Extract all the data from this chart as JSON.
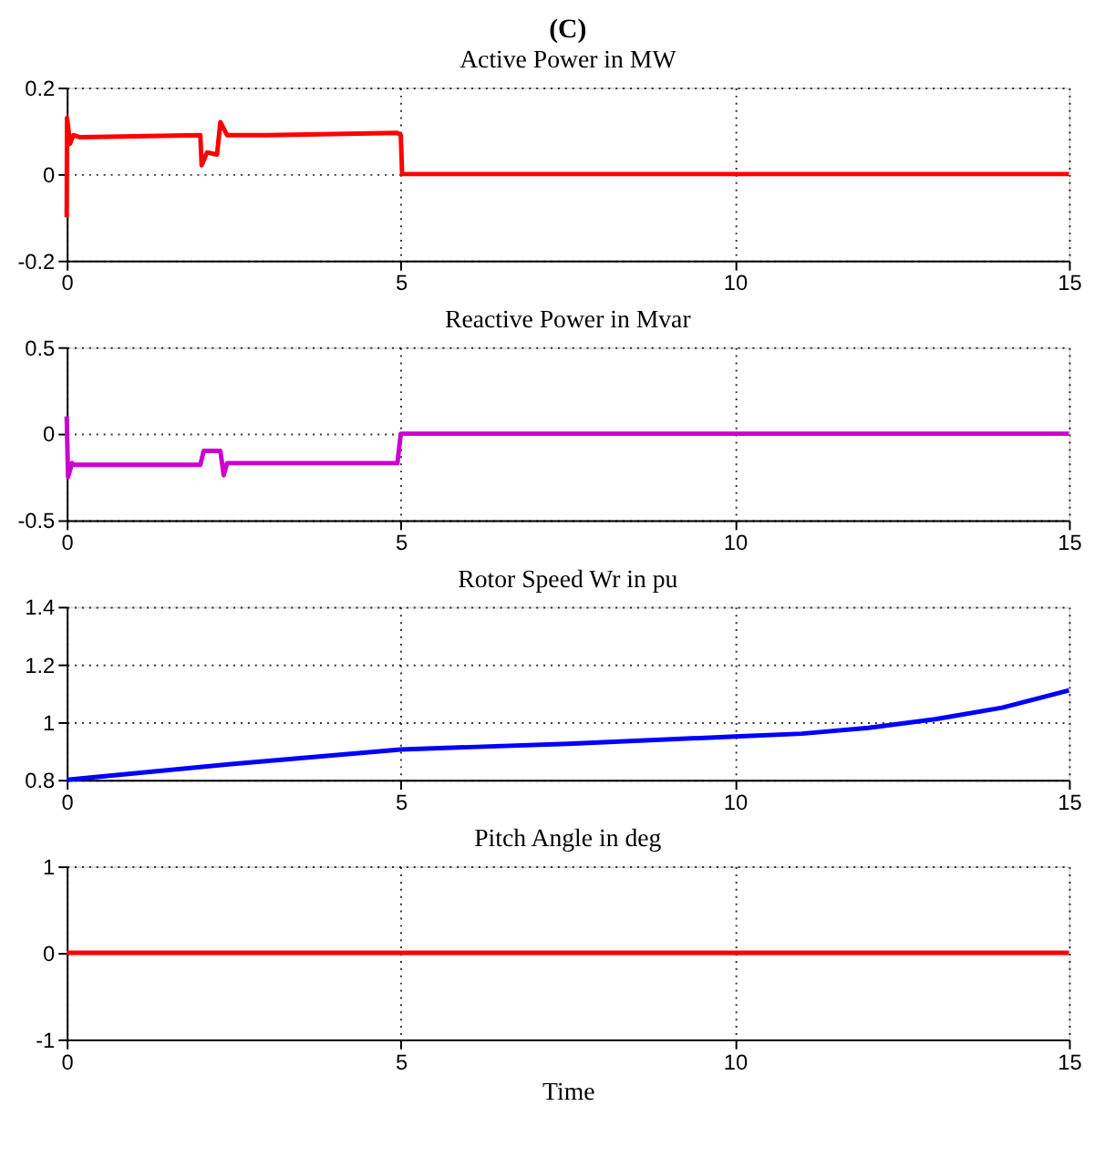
{
  "chart_data": [
    {
      "type": "line",
      "title": "(C)",
      "subtitle": "Active Power in MW",
      "xlim": [
        0,
        15
      ],
      "xticks": [
        0,
        5,
        10,
        15
      ],
      "ylim": [
        -0.2,
        0.2
      ],
      "yticks": [
        -0.2,
        0,
        0.2
      ],
      "grid": true,
      "series": [
        {
          "color": "#ff0000",
          "x": [
            0,
            0.005,
            0.05,
            0.1,
            0.2,
            2.0,
            2.02,
            2.1,
            2.25,
            2.3,
            2.4,
            3,
            4.95,
            5.0,
            5.02,
            15
          ],
          "values": [
            -0.1,
            0.13,
            0.07,
            0.09,
            0.085,
            0.09,
            0.02,
            0.05,
            0.045,
            0.12,
            0.09,
            0.09,
            0.095,
            0.09,
            0,
            0
          ]
        }
      ]
    },
    {
      "type": "line",
      "title": "Reactive Power in Mvar",
      "xlim": [
        0,
        15
      ],
      "xticks": [
        0,
        5,
        10,
        15
      ],
      "ylim": [
        -0.5,
        0.5
      ],
      "yticks": [
        -0.5,
        0,
        0.5
      ],
      "grid": true,
      "series": [
        {
          "color": "#cc00cc",
          "x": [
            0,
            0.02,
            0.08,
            0.1,
            2.0,
            2.05,
            2.3,
            2.35,
            2.4,
            4.95,
            5,
            15
          ],
          "values": [
            0.1,
            -0.25,
            -0.17,
            -0.18,
            -0.18,
            -0.1,
            -0.1,
            -0.24,
            -0.17,
            -0.17,
            0,
            0
          ]
        }
      ]
    },
    {
      "type": "line",
      "title": "Rotor Speed Wr in pu",
      "xlim": [
        0,
        15
      ],
      "xticks": [
        0,
        5,
        10,
        15
      ],
      "ylim": [
        0.8,
        1.4
      ],
      "yticks": [
        0.8,
        1,
        1.2,
        1.4
      ],
      "grid": true,
      "series": [
        {
          "color": "#0000ff",
          "x": [
            0,
            2.5,
            5,
            7.5,
            10,
            11,
            12,
            13,
            14,
            15
          ],
          "values": [
            0.8,
            0.855,
            0.905,
            0.925,
            0.95,
            0.96,
            0.98,
            1.01,
            1.05,
            1.11
          ]
        }
      ]
    },
    {
      "type": "line",
      "title": "Pitch Angle in deg",
      "xlabel": "Time",
      "xlim": [
        0,
        15
      ],
      "xticks": [
        0,
        5,
        10,
        15
      ],
      "ylim": [
        -1,
        1
      ],
      "yticks": [
        -1,
        0,
        1
      ],
      "grid": true,
      "series": [
        {
          "color": "#ff0000",
          "x": [
            0,
            15
          ],
          "values": [
            0,
            0
          ]
        }
      ]
    }
  ]
}
